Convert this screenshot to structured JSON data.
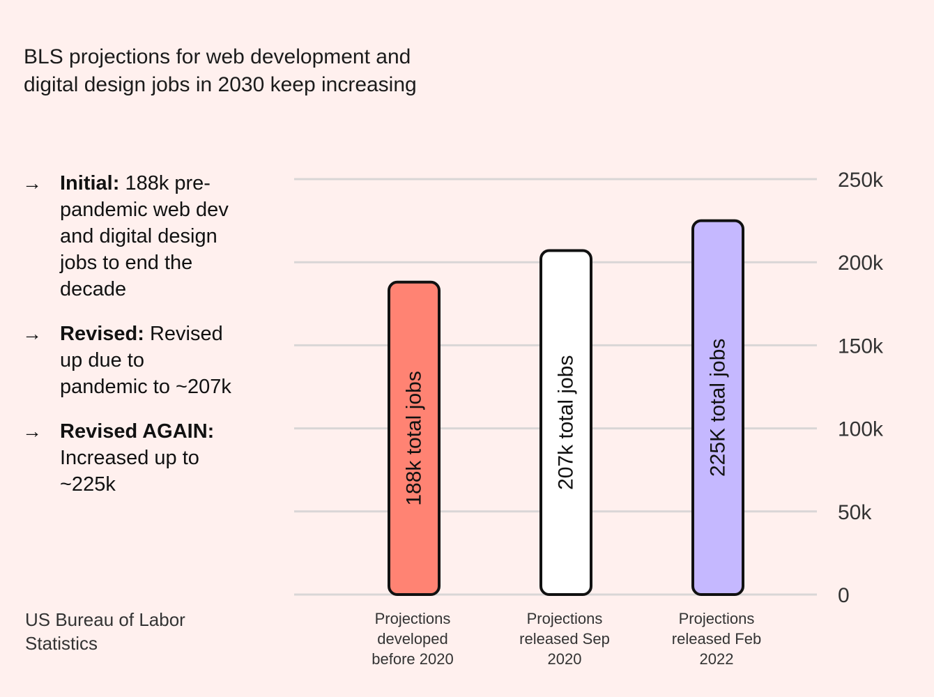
{
  "title_lines": [
    "BLS projections for web development and",
    "digital design jobs in 2030 keep increasing"
  ],
  "notes": [
    {
      "label": "Initial:",
      "text": " 188k pre-pandemic web dev and digital design jobs to end the decade"
    },
    {
      "label": "Revised:",
      "text": " Revised up due to pandemic to ~207k"
    },
    {
      "label": "Revised AGAIN:",
      "text": " Increased up to ~225k"
    }
  ],
  "arrow": "→",
  "source_lines": [
    "US Bureau of Labor",
    "Statistics"
  ],
  "chart_data": {
    "type": "bar",
    "categories": [
      [
        "Projections",
        "developed",
        "before 2020"
      ],
      [
        "Projections",
        "released Sep",
        "2020"
      ],
      [
        "Projections",
        "released Feb",
        "2022"
      ]
    ],
    "values": [
      188000,
      207000,
      225000
    ],
    "bar_labels": [
      "188k total jobs",
      "207k total jobs",
      "225K total jobs"
    ],
    "bar_colors": [
      "#ff8373",
      "#ffffff",
      "#c5b8ff"
    ],
    "ylim": [
      0,
      250000
    ],
    "yticks": [
      0,
      50000,
      100000,
      150000,
      200000,
      250000
    ],
    "ytick_labels": [
      "0",
      "50k",
      "100k",
      "150k",
      "200k",
      "250k"
    ],
    "grid": true,
    "y_axis_side": "right"
  },
  "colors": {
    "background": "#fff0ee",
    "grid": "#d9d6d6",
    "bar_stroke": "#111111"
  }
}
